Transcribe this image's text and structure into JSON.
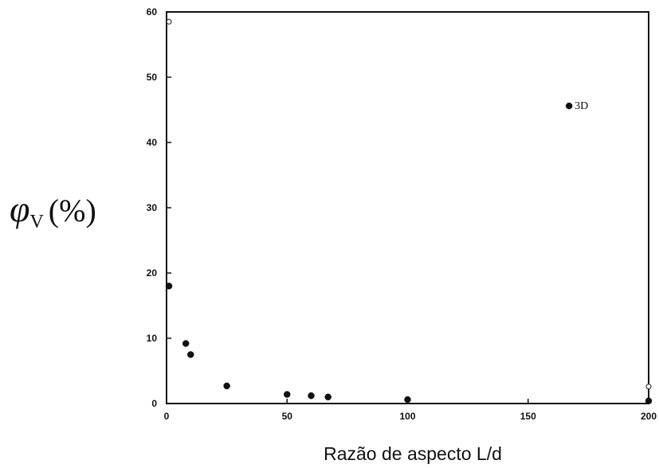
{
  "chart_data": {
    "type": "scatter",
    "xlabel": "Razão de aspecto L/d",
    "ylabel": {
      "symbol": "φ",
      "subscript": "V",
      "unit": "(%)"
    },
    "xlim": [
      0,
      200
    ],
    "ylim": [
      0,
      60
    ],
    "xticks": [
      0,
      50,
      100,
      150,
      200
    ],
    "yticks": [
      0,
      10,
      20,
      30,
      40,
      50,
      60
    ],
    "grid": false,
    "series": [
      {
        "marker": "filled-circle",
        "points": [
          {
            "x": 1,
            "y": 18
          },
          {
            "x": 8,
            "y": 9.2
          },
          {
            "x": 10,
            "y": 7.5
          },
          {
            "x": 25,
            "y": 2.7
          },
          {
            "x": 50,
            "y": 1.4
          },
          {
            "x": 60,
            "y": 1.2
          },
          {
            "x": 67,
            "y": 1.0
          },
          {
            "x": 100,
            "y": 0.6
          },
          {
            "x": 200,
            "y": 0.4
          },
          {
            "x": 167,
            "y": 45.6,
            "label": "3D"
          }
        ]
      },
      {
        "marker": "open-circle",
        "points": [
          {
            "x": 1,
            "y": 58.5
          },
          {
            "x": 200,
            "y": 2.6
          }
        ]
      }
    ]
  }
}
